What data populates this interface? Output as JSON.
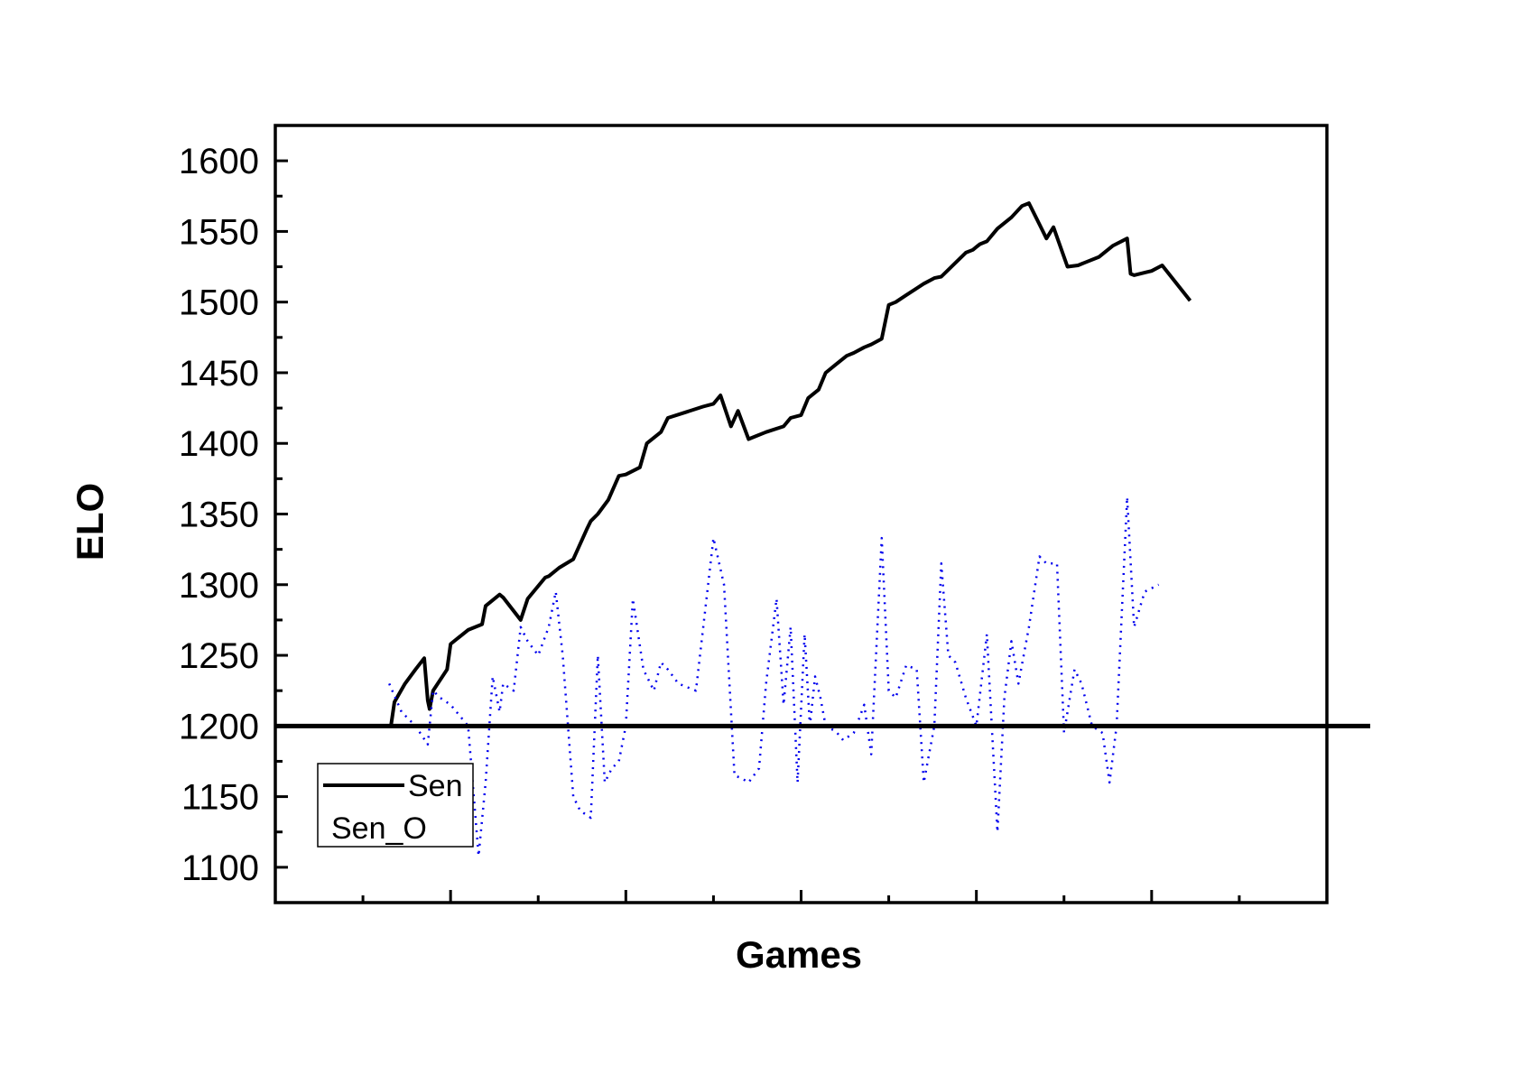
{
  "chart_data": {
    "type": "line",
    "title": "",
    "xlabel": "Games",
    "ylabel": "ELO",
    "xlim": [
      0,
      60
    ],
    "ylim": [
      1075,
      1625
    ],
    "y_ticks": [
      1100,
      1150,
      1200,
      1250,
      1300,
      1350,
      1400,
      1450,
      1500,
      1550,
      1600
    ],
    "x_ticks_unlabeled": [
      0,
      5,
      10,
      15,
      20,
      25,
      30,
      35,
      40,
      45,
      50,
      55,
      60
    ],
    "reference_line": {
      "y": 1200,
      "color": "#000000"
    },
    "grid": false,
    "legend_position": "bottom-left",
    "series": [
      {
        "name": "Sen",
        "color": "#000000",
        "style": "solid",
        "x": [
          6.6,
          6.8,
          7.4,
          8.0,
          8.5,
          8.7,
          8.8,
          9.0,
          9.8,
          10.0,
          11.0,
          11.8,
          12.0,
          12.8,
          13.0,
          14.0,
          14.4,
          15.4,
          15.6,
          16.2,
          17.0,
          17.8,
          18.0,
          18.4,
          19.0,
          19.6,
          20.0,
          20.8,
          21.2,
          22.0,
          22.4,
          23.4,
          24.4,
          25.0,
          25.4,
          26.0,
          26.4,
          27.0,
          27.4,
          28.0,
          29.0,
          29.4,
          30.0,
          30.4,
          31.0,
          31.4,
          32.0,
          32.6,
          33.0,
          33.6,
          34.0,
          34.6,
          35.0,
          35.4,
          36.0,
          37.0,
          37.6,
          38.0,
          39.4,
          39.8,
          40.0,
          40.2,
          40.6,
          41.2,
          42.0,
          42.6,
          43.0,
          43.6,
          44.0,
          44.4,
          45.2,
          45.8,
          46.0,
          46.2,
          47.0,
          47.8,
          48.6,
          48.8,
          49.0,
          50.0,
          50.6,
          52.2
        ],
        "y": [
          1200,
          1217,
          1230,
          1240,
          1248,
          1218,
          1212,
          1225,
          1240,
          1258,
          1268,
          1272,
          1285,
          1293,
          1291,
          1275,
          1290,
          1305,
          1306,
          1312,
          1318,
          1340,
          1345,
          1350,
          1360,
          1377,
          1378,
          1383,
          1400,
          1408,
          1418,
          1422,
          1426,
          1428,
          1434,
          1412,
          1423,
          1403,
          1405,
          1408,
          1412,
          1418,
          1420,
          1432,
          1438,
          1450,
          1456,
          1462,
          1464,
          1468,
          1470,
          1474,
          1498,
          1500,
          1505,
          1513,
          1517,
          1518,
          1535,
          1537,
          1539,
          1541,
          1543,
          1552,
          1560,
          1568,
          1570,
          1555,
          1545,
          1553,
          1525,
          1526,
          1527,
          1528,
          1532,
          1540,
          1545,
          1520,
          1519,
          1522,
          1526,
          1501
        ]
      },
      {
        "name": "Sen_O",
        "color": "#0000ee",
        "style": "dotted",
        "x": [
          6.5,
          7.2,
          8.0,
          8.7,
          9.0,
          9.4,
          10.0,
          11.0,
          11.6,
          12.0,
          12.4,
          12.8,
          13.0,
          13.6,
          14.0,
          14.4,
          15.0,
          15.6,
          16.0,
          16.4,
          17.0,
          17.4,
          18.0,
          18.4,
          18.8,
          19.2,
          19.6,
          20.0,
          20.4,
          21.0,
          21.2,
          21.6,
          22.0,
          22.4,
          23.0,
          24.0,
          25.0,
          25.6,
          26.2,
          26.6,
          27.0,
          27.6,
          28.0,
          28.6,
          29.0,
          29.4,
          29.8,
          30.2,
          30.5,
          30.8,
          31.1,
          31.4,
          31.7,
          32.0,
          32.4,
          33.0,
          33.6,
          34.0,
          34.6,
          35.0,
          35.4,
          36.0,
          36.6,
          37.0,
          37.6,
          38.0,
          38.4,
          38.8,
          39.4,
          40.0,
          40.6,
          41.2,
          41.6,
          42.0,
          42.4,
          43.0,
          43.6,
          44.0,
          44.6,
          45.0,
          45.6,
          46.0,
          46.6,
          47.2,
          47.6,
          48.0,
          48.6,
          49.0,
          49.6,
          50.4
        ],
        "y": [
          1230,
          1210,
          1200,
          1187,
          1225,
          1220,
          1215,
          1200,
          1108,
          1160,
          1235,
          1210,
          1230,
          1225,
          1270,
          1260,
          1250,
          1270,
          1295,
          1250,
          1150,
          1140,
          1135,
          1250,
          1160,
          1170,
          1175,
          1200,
          1290,
          1240,
          1235,
          1225,
          1245,
          1240,
          1230,
          1225,
          1333,
          1300,
          1165,
          1163,
          1160,
          1170,
          1230,
          1290,
          1215,
          1270,
          1160,
          1265,
          1200,
          1235,
          1220,
          1200,
          1198,
          1196,
          1190,
          1195,
          1215,
          1180,
          1333,
          1225,
          1220,
          1243,
          1240,
          1160,
          1200,
          1315,
          1250,
          1245,
          1220,
          1200,
          1265,
          1125,
          1220,
          1260,
          1230,
          1270,
          1320,
          1315,
          1315,
          1195,
          1240,
          1230,
          1200,
          1195,
          1160,
          1200,
          1362,
          1270,
          1295,
          1300
        ]
      }
    ]
  }
}
